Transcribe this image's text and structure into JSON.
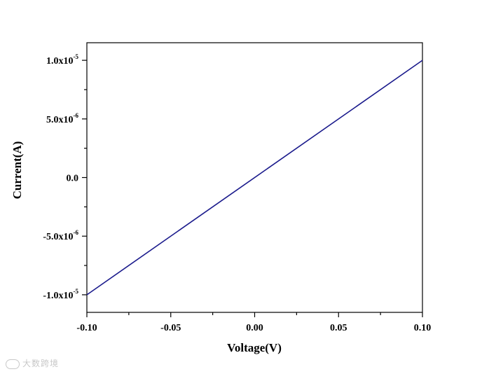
{
  "chart_data": {
    "type": "line",
    "title": "",
    "xlabel": "Voltage(V)",
    "ylabel": "Current(A)",
    "xlim": [
      -0.1,
      0.1
    ],
    "ylim": [
      -1.15e-05,
      1.15e-05
    ],
    "x_ticks": [
      {
        "value": -0.1,
        "label": "-0.10"
      },
      {
        "value": -0.05,
        "label": "-0.05"
      },
      {
        "value": 0.0,
        "label": "0.00"
      },
      {
        "value": 0.05,
        "label": "0.05"
      },
      {
        "value": 0.1,
        "label": "0.10"
      }
    ],
    "y_ticks": [
      {
        "value": 1e-05,
        "mantissa": "1.0x10",
        "exponent": "-5"
      },
      {
        "value": 5e-06,
        "mantissa": "5.0x10",
        "exponent": "-6"
      },
      {
        "value": 0,
        "mantissa": "0.0",
        "exponent": ""
      },
      {
        "value": -5e-06,
        "mantissa": "-5.0x10",
        "exponent": "-6"
      },
      {
        "value": -1e-05,
        "mantissa": "-1.0x10",
        "exponent": "-5"
      }
    ],
    "grid": false,
    "legend": "none",
    "series": [
      {
        "color": "#1a1a8c",
        "x": [
          -0.1,
          0.1
        ],
        "y": [
          -1e-05,
          1e-05
        ]
      }
    ]
  },
  "watermark": {
    "text": "大数跨境"
  }
}
